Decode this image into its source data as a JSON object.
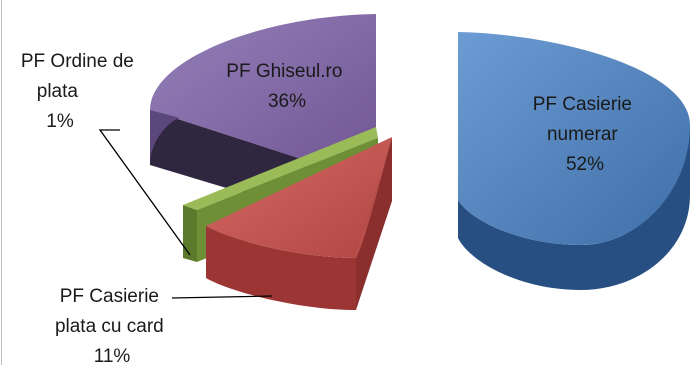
{
  "chart_data": {
    "type": "pie",
    "style": "3d-exploded",
    "slices": [
      {
        "label_lines": [
          "PF Casierie",
          "numerar",
          "52%"
        ],
        "value": 52,
        "color": "#4f81bd"
      },
      {
        "label_lines": [
          "PF Casierie",
          "plata cu card",
          "11%"
        ],
        "value": 11,
        "color": "#c0504d"
      },
      {
        "label_lines": [
          "PF Ordine de",
          "plata",
          "1%"
        ],
        "value": 1,
        "color": "#9bbb59"
      },
      {
        "label_lines": [
          "PF Ghiseul.ro",
          "36%"
        ],
        "value": 36,
        "color": "#8064a2"
      }
    ],
    "legend": "none"
  }
}
